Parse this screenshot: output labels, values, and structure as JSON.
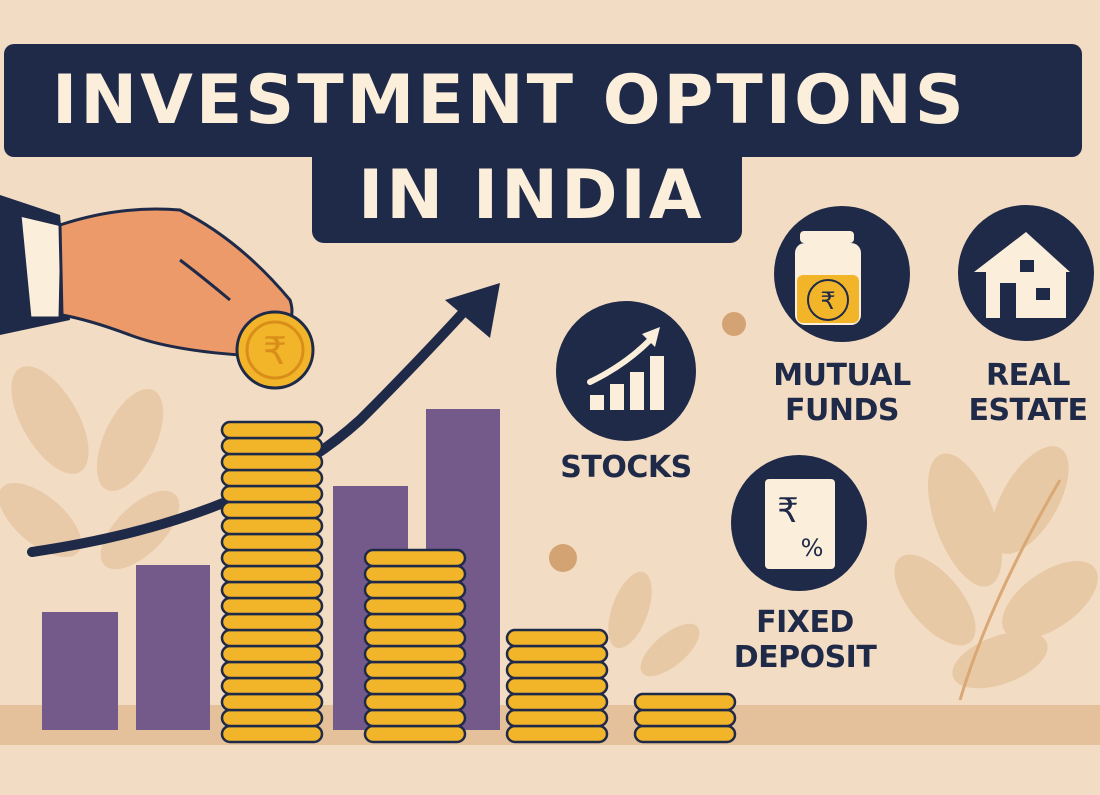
{
  "title": {
    "line1": "INVESTMENT OPTIONS",
    "line2": "IN INDIA"
  },
  "options": [
    {
      "label": "STOCKS",
      "icon": "bar-chart-up-icon"
    },
    {
      "label_lines": [
        "MUTUAL",
        "FUNDS"
      ],
      "icon": "coin-jar-icon"
    },
    {
      "label_lines": [
        "REAL",
        "ESTATE"
      ],
      "icon": "house-icon"
    },
    {
      "label_lines": [
        "FIXED",
        "DEPOSIT"
      ],
      "icon": "rupee-percent-document-icon"
    }
  ],
  "coin_symbol": "₹",
  "fd_symbols": {
    "rupee": "₹",
    "percent": "%"
  },
  "colors": {
    "background": "#f2dcc3",
    "navy": "#1f2a48",
    "cream": "#fbeedb",
    "gold": "#f2b52a",
    "purple": "#735a8a"
  }
}
